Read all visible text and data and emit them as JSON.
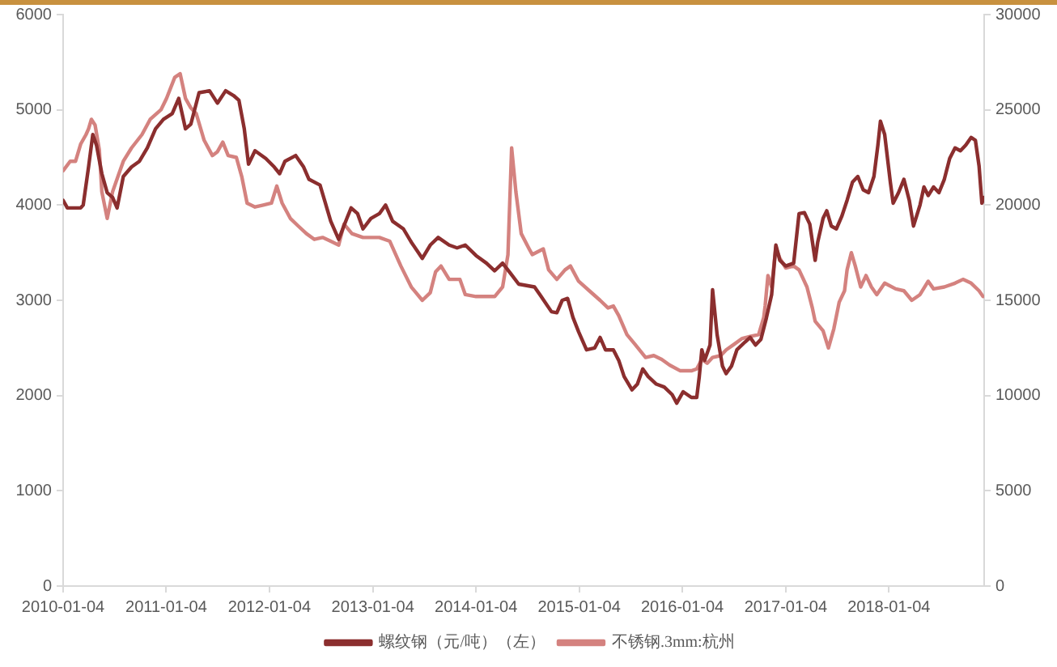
{
  "chart_data": {
    "type": "line",
    "legend": "bottom",
    "xlim": [
      "2010-01-04",
      "2018-12-07"
    ],
    "xticks": [
      "2010-01-04",
      "2011-01-04",
      "2012-01-04",
      "2013-01-04",
      "2014-01-04",
      "2015-01-04",
      "2016-01-04",
      "2017-01-04",
      "2018-01-04"
    ],
    "ylim": [
      0,
      6000
    ],
    "yticks": [
      0,
      1000,
      2000,
      3000,
      4000,
      5000,
      6000
    ],
    "y2lim": [
      0,
      30000
    ],
    "y2ticks": [
      0,
      5000,
      10000,
      15000,
      20000,
      25000,
      30000
    ],
    "series": [
      {
        "name": "螺纹钢（元/吨）（左）",
        "color": "#8b2e2e",
        "x": [
          "2010-01-04",
          "2010-01-19",
          "2010-03-07",
          "2010-03-16",
          "2010-04-04",
          "2010-04-19",
          "2010-05-02",
          "2010-05-21",
          "2010-06-09",
          "2010-06-28",
          "2010-07-14",
          "2010-08-05",
          "2010-09-03",
          "2010-10-01",
          "2010-10-29",
          "2010-11-27",
          "2010-12-25",
          "2011-01-25",
          "2011-02-17",
          "2011-03-13",
          "2011-04-01",
          "2011-04-30",
          "2011-06-06",
          "2011-07-04",
          "2011-08-02",
          "2011-08-30",
          "2011-09-18",
          "2011-10-07",
          "2011-10-22",
          "2011-11-14",
          "2011-12-22",
          "2012-01-21",
          "2012-02-09",
          "2012-02-28",
          "2012-04-06",
          "2012-05-04",
          "2012-05-23",
          "2012-07-01",
          "2012-07-20",
          "2012-08-08",
          "2012-09-05",
          "2012-10-04",
          "2012-10-19",
          "2012-11-11",
          "2012-11-30",
          "2012-12-28",
          "2013-01-27",
          "2013-02-18",
          "2013-03-15",
          "2013-04-22",
          "2013-05-20",
          "2013-06-28",
          "2013-07-26",
          "2013-08-23",
          "2013-10-01",
          "2013-10-29",
          "2013-11-27",
          "2014-01-04",
          "2014-02-10",
          "2014-03-11",
          "2014-04-08",
          "2014-05-07",
          "2014-06-04",
          "2014-07-30",
          "2014-08-20",
          "2014-09-28",
          "2014-10-17",
          "2014-11-05",
          "2014-11-24",
          "2014-12-13",
          "2015-01-02",
          "2015-01-30",
          "2015-02-28",
          "2015-03-19",
          "2015-04-07",
          "2015-05-05",
          "2015-05-24",
          "2015-06-12",
          "2015-07-10",
          "2015-07-29",
          "2015-08-17",
          "2015-09-05",
          "2015-10-04",
          "2015-11-01",
          "2015-11-29",
          "2015-12-15",
          "2016-01-07",
          "2016-02-05",
          "2016-02-24",
          "2016-03-04",
          "2016-03-13",
          "2016-03-23",
          "2016-04-11",
          "2016-04-20",
          "2016-05-06",
          "2016-05-25",
          "2016-06-07",
          "2016-06-26",
          "2016-07-15",
          "2016-08-12",
          "2016-08-31",
          "2016-09-19",
          "2016-10-08",
          "2016-10-27",
          "2016-11-15",
          "2016-11-30",
          "2016-12-14",
          "2017-01-04",
          "2017-02-01",
          "2017-02-20",
          "2017-03-11",
          "2017-03-30",
          "2017-04-18",
          "2017-04-27",
          "2017-05-16",
          "2017-05-29",
          "2017-06-14",
          "2017-07-02",
          "2017-07-21",
          "2017-08-09",
          "2017-08-28",
          "2017-09-16",
          "2017-10-05",
          "2017-10-24",
          "2017-11-12",
          "2017-11-26",
          "2017-12-05",
          "2017-12-20",
          "2018-01-09",
          "2018-01-19",
          "2018-02-07",
          "2018-02-26",
          "2018-03-17",
          "2018-04-01",
          "2018-04-24",
          "2018-05-08",
          "2018-05-23",
          "2018-06-11",
          "2018-06-30",
          "2018-07-19",
          "2018-08-07",
          "2018-08-26",
          "2018-09-14",
          "2018-10-03",
          "2018-10-22",
          "2018-11-06",
          "2018-11-19",
          "2018-11-29",
          "2018-12-07"
        ],
        "values": [
          4050,
          3970,
          3970,
          4000,
          4400,
          4740,
          4630,
          4330,
          4130,
          4080,
          3970,
          4300,
          4400,
          4460,
          4600,
          4800,
          4900,
          4960,
          5120,
          4800,
          4850,
          5180,
          5200,
          5070,
          5200,
          5150,
          5100,
          4800,
          4430,
          4570,
          4490,
          4400,
          4330,
          4460,
          4520,
          4400,
          4270,
          4210,
          4020,
          3830,
          3640,
          3860,
          3970,
          3910,
          3750,
          3860,
          3910,
          4000,
          3830,
          3750,
          3610,
          3440,
          3580,
          3660,
          3580,
          3550,
          3580,
          3470,
          3390,
          3310,
          3390,
          3280,
          3170,
          3140,
          3050,
          2880,
          2870,
          3000,
          3020,
          2820,
          2670,
          2480,
          2500,
          2610,
          2480,
          2480,
          2370,
          2200,
          2060,
          2120,
          2280,
          2200,
          2120,
          2090,
          2010,
          1920,
          2040,
          1980,
          1980,
          2200,
          2480,
          2370,
          2530,
          3110,
          2640,
          2310,
          2230,
          2310,
          2480,
          2560,
          2610,
          2530,
          2590,
          2810,
          3060,
          3580,
          3420,
          3360,
          3390,
          3910,
          3920,
          3800,
          3420,
          3610,
          3860,
          3940,
          3780,
          3750,
          3880,
          4050,
          4240,
          4300,
          4160,
          4130,
          4300,
          4630,
          4880,
          4740,
          4240,
          4020,
          4130,
          4270,
          4050,
          3780,
          4000,
          4190,
          4100,
          4190,
          4130,
          4270,
          4490,
          4600,
          4570,
          4630,
          4710,
          4680,
          4410,
          4020,
          4080
        ]
      },
      {
        "name": "不锈钢.3mm:杭州",
        "color": "#d4827f",
        "axis": "y2",
        "x": [
          "2010-01-04",
          "2010-01-29",
          "2010-02-17",
          "2010-03-07",
          "2010-03-26",
          "2010-04-04",
          "2010-04-14",
          "2010-04-27",
          "2010-05-12",
          "2010-05-21",
          "2010-06-09",
          "2010-06-28",
          "2010-07-17",
          "2010-08-05",
          "2010-09-03",
          "2010-10-10",
          "2010-11-08",
          "2010-12-16",
          "2011-01-05",
          "2011-02-03",
          "2011-02-22",
          "2011-03-13",
          "2011-04-01",
          "2011-04-20",
          "2011-05-18",
          "2011-06-16",
          "2011-07-04",
          "2011-07-23",
          "2011-08-11",
          "2011-09-09",
          "2011-09-28",
          "2011-10-17",
          "2011-11-14",
          "2011-12-13",
          "2012-01-11",
          "2012-01-30",
          "2012-02-18",
          "2012-03-18",
          "2012-04-15",
          "2012-05-14",
          "2012-06-11",
          "2012-07-10",
          "2012-08-08",
          "2012-09-05",
          "2012-09-24",
          "2012-10-22",
          "2012-11-30",
          "2013-01-27",
          "2013-03-05",
          "2013-04-13",
          "2013-05-20",
          "2013-06-28",
          "2013-07-26",
          "2013-08-14",
          "2013-09-02",
          "2013-10-01",
          "2013-11-08",
          "2013-11-27",
          "2014-01-04",
          "2014-02-10",
          "2014-03-11",
          "2014-04-08",
          "2014-04-27",
          "2014-05-10",
          "2014-05-25",
          "2014-06-13",
          "2014-07-11",
          "2014-07-22",
          "2014-08-30",
          "2014-09-18",
          "2014-10-17",
          "2014-11-15",
          "2014-12-04",
          "2015-01-02",
          "2015-02-09",
          "2015-03-19",
          "2015-04-16",
          "2015-05-05",
          "2015-05-24",
          "2015-06-22",
          "2015-07-20",
          "2015-08-27",
          "2015-09-25",
          "2015-10-23",
          "2015-11-20",
          "2015-12-28",
          "2016-02-05",
          "2016-02-24",
          "2016-03-13",
          "2016-04-01",
          "2016-04-20",
          "2016-05-19",
          "2016-06-07",
          "2016-07-06",
          "2016-08-03",
          "2016-08-31",
          "2016-09-30",
          "2016-10-18",
          "2016-10-23",
          "2016-11-02",
          "2016-11-15",
          "2016-11-30",
          "2016-12-14",
          "2017-01-04",
          "2017-02-01",
          "2017-02-20",
          "2017-03-20",
          "2017-04-08",
          "2017-04-18",
          "2017-05-16",
          "2017-06-04",
          "2017-06-23",
          "2017-07-12",
          "2017-07-31",
          "2017-08-09",
          "2017-08-24",
          "2017-09-07",
          "2017-09-26",
          "2017-10-15",
          "2017-11-03",
          "2017-11-22",
          "2017-12-20",
          "2018-01-28",
          "2018-02-26",
          "2018-03-26",
          "2018-04-24",
          "2018-05-23",
          "2018-06-11",
          "2018-07-19",
          "2018-08-26",
          "2018-09-23",
          "2018-10-22",
          "2018-11-19",
          "2018-12-03"
        ],
        "values": [
          21800,
          22300,
          22300,
          23200,
          23700,
          24000,
          24500,
          24200,
          22900,
          20700,
          19300,
          20700,
          21500,
          22300,
          23000,
          23700,
          24500,
          25000,
          25600,
          26700,
          26900,
          25600,
          25100,
          24800,
          23400,
          22600,
          22800,
          23300,
          22600,
          22500,
          21500,
          20100,
          19900,
          20000,
          20100,
          21000,
          20100,
          19300,
          18900,
          18500,
          18200,
          18300,
          18100,
          17900,
          19000,
          18500,
          18300,
          18300,
          18100,
          16800,
          15700,
          15000,
          15400,
          16500,
          16800,
          16100,
          16100,
          15300,
          15200,
          15200,
          15200,
          15700,
          17400,
          23000,
          20700,
          18500,
          17700,
          17400,
          17700,
          16600,
          16100,
          16600,
          16800,
          16000,
          15500,
          15000,
          14600,
          14700,
          14200,
          13200,
          12700,
          12000,
          12100,
          11900,
          11600,
          11300,
          11300,
          11400,
          11900,
          11700,
          12000,
          12100,
          12400,
          12700,
          13000,
          13100,
          13200,
          14100,
          14700,
          16300,
          15700,
          17800,
          17200,
          16700,
          16800,
          16600,
          15700,
          14600,
          13900,
          13400,
          12500,
          13500,
          14900,
          15500,
          16600,
          17500,
          16800,
          15700,
          16300,
          15700,
          15300,
          15900,
          15600,
          15500,
          15000,
          15300,
          16000,
          15600,
          15700,
          15900,
          16100,
          15900,
          15500,
          15200
        ]
      }
    ]
  }
}
